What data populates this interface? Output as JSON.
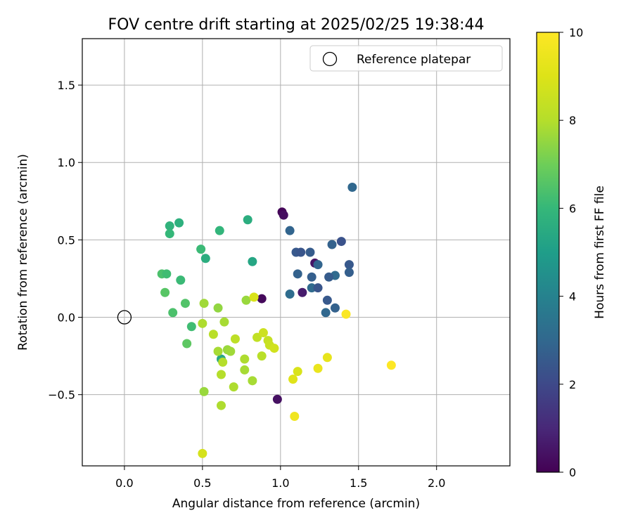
{
  "chart_data": {
    "type": "scatter",
    "title": "FOV centre drift starting at 2025/02/25 19:38:44",
    "xlabel": "Angular distance from reference (arcmin)",
    "ylabel": "Rotation from reference (arcmin)",
    "xlim": [
      -0.27,
      2.47
    ],
    "ylim": [
      -0.96,
      1.8
    ],
    "xticks": [
      0.0,
      0.5,
      1.0,
      1.5,
      2.0
    ],
    "xtick_labels": [
      "0.0",
      "0.5",
      "1.0",
      "1.5",
      "2.0"
    ],
    "yticks": [
      -0.5,
      0.0,
      0.5,
      1.0,
      1.5
    ],
    "ytick_labels": [
      "−0.5",
      "0.0",
      "0.5",
      "1.0",
      "1.5"
    ],
    "grid": true,
    "legend": {
      "placement": "top-right",
      "entries": [
        "Reference platepar"
      ]
    },
    "reference_point": {
      "x": 0.0,
      "y": 0.0,
      "label": "Reference platepar"
    },
    "colorbar": {
      "label": "Hours from first FF file",
      "colormap": "viridis",
      "range": [
        0,
        10
      ],
      "ticks": [
        0,
        2,
        4,
        6,
        8,
        10
      ],
      "tick_labels": [
        "0",
        "2",
        "4",
        "6",
        "8",
        "10"
      ]
    },
    "points": [
      {
        "x": 1.01,
        "y": 0.68,
        "c": 0.1
      },
      {
        "x": 1.02,
        "y": 0.66,
        "c": 0.3
      },
      {
        "x": 1.22,
        "y": 0.35,
        "c": 0.5
      },
      {
        "x": 1.14,
        "y": 0.16,
        "c": 0.7
      },
      {
        "x": 0.88,
        "y": 0.12,
        "c": 0.2
      },
      {
        "x": 0.98,
        "y": -0.53,
        "c": 0.4
      },
      {
        "x": 1.46,
        "y": 0.84,
        "c": 3.0
      },
      {
        "x": 1.06,
        "y": 0.56,
        "c": 2.9
      },
      {
        "x": 1.1,
        "y": 0.42,
        "c": 2.5
      },
      {
        "x": 1.13,
        "y": 0.42,
        "c": 2.4
      },
      {
        "x": 1.19,
        "y": 0.42,
        "c": 2.6
      },
      {
        "x": 1.33,
        "y": 0.47,
        "c": 2.8
      },
      {
        "x": 1.39,
        "y": 0.49,
        "c": 2.3
      },
      {
        "x": 1.44,
        "y": 0.34,
        "c": 2.5
      },
      {
        "x": 1.44,
        "y": 0.29,
        "c": 2.7
      },
      {
        "x": 1.35,
        "y": 0.27,
        "c": 3.1
      },
      {
        "x": 1.31,
        "y": 0.26,
        "c": 2.6
      },
      {
        "x": 1.24,
        "y": 0.34,
        "c": 2.9
      },
      {
        "x": 1.11,
        "y": 0.28,
        "c": 2.8
      },
      {
        "x": 1.2,
        "y": 0.26,
        "c": 2.7
      },
      {
        "x": 1.2,
        "y": 0.19,
        "c": 3.1
      },
      {
        "x": 1.24,
        "y": 0.19,
        "c": 2.4
      },
      {
        "x": 1.06,
        "y": 0.15,
        "c": 3.2
      },
      {
        "x": 1.3,
        "y": 0.11,
        "c": 2.5
      },
      {
        "x": 1.35,
        "y": 0.06,
        "c": 2.8
      },
      {
        "x": 1.29,
        "y": 0.03,
        "c": 3.0
      },
      {
        "x": 0.79,
        "y": 0.63,
        "c": 5.6
      },
      {
        "x": 0.82,
        "y": 0.36,
        "c": 5.3
      },
      {
        "x": 0.35,
        "y": 0.61,
        "c": 5.7
      },
      {
        "x": 0.29,
        "y": 0.59,
        "c": 5.8
      },
      {
        "x": 0.29,
        "y": 0.54,
        "c": 6.0
      },
      {
        "x": 0.61,
        "y": 0.56,
        "c": 5.9
      },
      {
        "x": 0.49,
        "y": 0.44,
        "c": 6.1
      },
      {
        "x": 0.52,
        "y": 0.38,
        "c": 5.6
      },
      {
        "x": 0.24,
        "y": 0.28,
        "c": 6.4
      },
      {
        "x": 0.27,
        "y": 0.28,
        "c": 6.2
      },
      {
        "x": 0.36,
        "y": 0.24,
        "c": 6.1
      },
      {
        "x": 0.26,
        "y": 0.16,
        "c": 6.6
      },
      {
        "x": 0.39,
        "y": 0.09,
        "c": 6.5
      },
      {
        "x": 0.31,
        "y": 0.03,
        "c": 6.4
      },
      {
        "x": 0.43,
        "y": -0.06,
        "c": 6.2
      },
      {
        "x": 0.4,
        "y": -0.17,
        "c": 6.7
      },
      {
        "x": 0.62,
        "y": -0.27,
        "c": 5.4
      },
      {
        "x": 0.78,
        "y": 0.11,
        "c": 7.6
      },
      {
        "x": 0.6,
        "y": 0.06,
        "c": 7.5
      },
      {
        "x": 0.51,
        "y": 0.09,
        "c": 7.7
      },
      {
        "x": 0.5,
        "y": -0.04,
        "c": 7.9
      },
      {
        "x": 0.64,
        "y": -0.03,
        "c": 7.8
      },
      {
        "x": 0.57,
        "y": -0.11,
        "c": 8.1
      },
      {
        "x": 0.6,
        "y": -0.22,
        "c": 7.8
      },
      {
        "x": 0.66,
        "y": -0.21,
        "c": 7.6
      },
      {
        "x": 0.68,
        "y": -0.22,
        "c": 7.7
      },
      {
        "x": 0.63,
        "y": -0.29,
        "c": 8.0
      },
      {
        "x": 0.71,
        "y": -0.14,
        "c": 8.2
      },
      {
        "x": 0.77,
        "y": -0.27,
        "c": 7.9
      },
      {
        "x": 0.77,
        "y": -0.34,
        "c": 7.8
      },
      {
        "x": 0.62,
        "y": -0.37,
        "c": 8.0
      },
      {
        "x": 0.7,
        "y": -0.45,
        "c": 7.9
      },
      {
        "x": 0.82,
        "y": -0.41,
        "c": 7.8
      },
      {
        "x": 0.51,
        "y": -0.48,
        "c": 7.6
      },
      {
        "x": 0.62,
        "y": -0.57,
        "c": 7.9
      },
      {
        "x": 0.85,
        "y": -0.13,
        "c": 8.3
      },
      {
        "x": 0.88,
        "y": -0.25,
        "c": 8.1
      },
      {
        "x": 0.89,
        "y": -0.1,
        "c": 8.6
      },
      {
        "x": 0.92,
        "y": -0.15,
        "c": 8.4
      },
      {
        "x": 0.93,
        "y": -0.18,
        "c": 8.5
      },
      {
        "x": 0.96,
        "y": -0.2,
        "c": 8.7
      },
      {
        "x": 0.83,
        "y": 0.13,
        "c": 8.9
      },
      {
        "x": 0.5,
        "y": -0.88,
        "c": 8.8
      },
      {
        "x": 1.11,
        "y": -0.35,
        "c": 8.9
      },
      {
        "x": 1.08,
        "y": -0.4,
        "c": 9.1
      },
      {
        "x": 1.09,
        "y": -0.64,
        "c": 9.6
      },
      {
        "x": 1.24,
        "y": -0.33,
        "c": 9.4
      },
      {
        "x": 1.3,
        "y": -0.26,
        "c": 9.3
      },
      {
        "x": 1.42,
        "y": 0.02,
        "c": 9.9
      },
      {
        "x": 1.71,
        "y": -0.31,
        "c": 10.0
      }
    ]
  }
}
